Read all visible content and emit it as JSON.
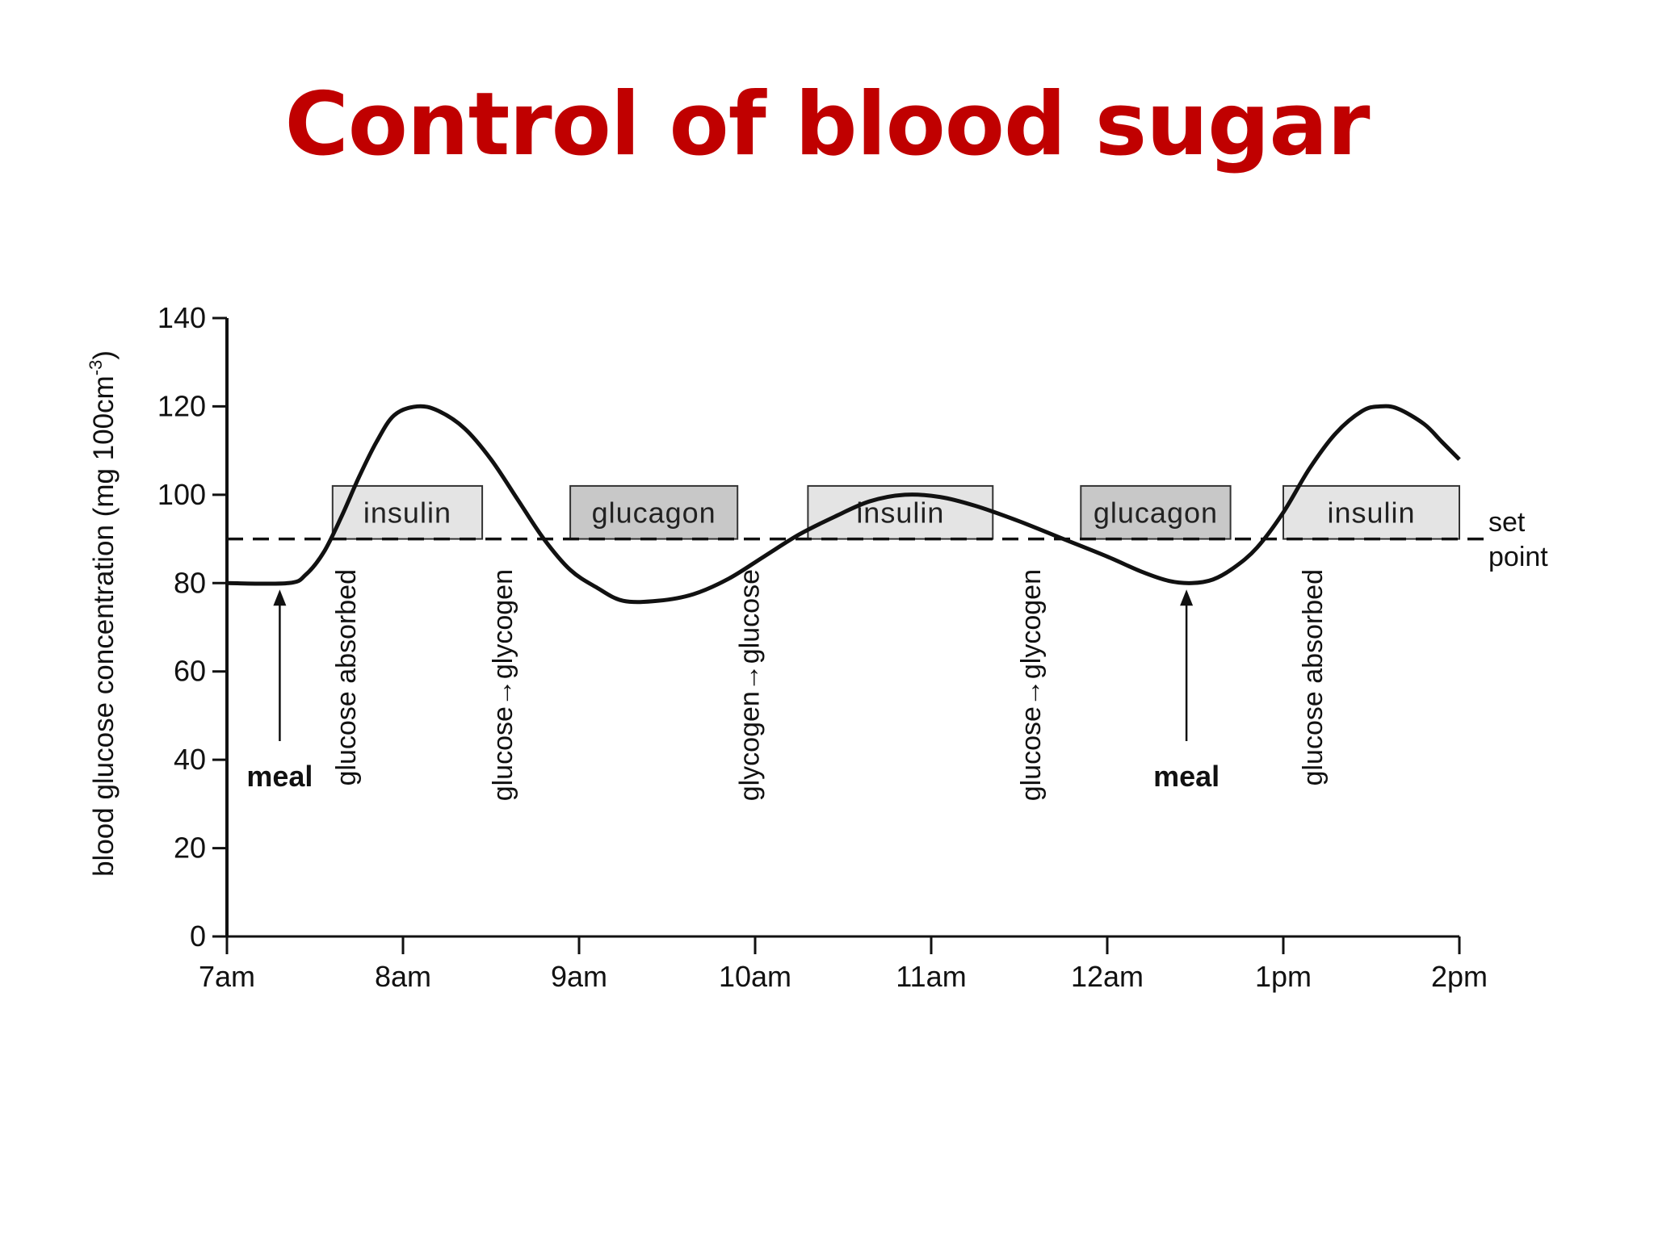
{
  "slide": {
    "title": "Control of blood sugar"
  },
  "chart_data": {
    "type": "line",
    "title": "Control of blood sugar",
    "ylabel": "blood glucose concentration (mg 100cm",
    "ylabel_superscript": "-3",
    "ylabel_close": ")",
    "ylim": [
      0,
      140
    ],
    "yticks": [
      0,
      20,
      40,
      60,
      80,
      100,
      120,
      140
    ],
    "xlim": [
      7,
      14
    ],
    "xtick_values": [
      7,
      8,
      9,
      10,
      11,
      12,
      13,
      14
    ],
    "xtick_labels": [
      "7am",
      "8am",
      "9am",
      "10am",
      "11am",
      "12am",
      "1pm",
      "2pm"
    ],
    "grid": false,
    "set_point": {
      "value": 90,
      "label_line1": "set",
      "label_line2": "point"
    },
    "series": [
      {
        "color": "#111111",
        "points": [
          [
            7.0,
            80
          ],
          [
            7.35,
            80
          ],
          [
            7.45,
            82
          ],
          [
            7.55,
            87
          ],
          [
            7.65,
            95
          ],
          [
            7.75,
            104
          ],
          [
            7.85,
            112
          ],
          [
            7.95,
            118
          ],
          [
            8.08,
            120
          ],
          [
            8.2,
            119
          ],
          [
            8.35,
            115
          ],
          [
            8.5,
            108
          ],
          [
            8.65,
            99
          ],
          [
            8.8,
            90
          ],
          [
            8.95,
            83
          ],
          [
            9.1,
            79
          ],
          [
            9.25,
            76
          ],
          [
            9.45,
            76
          ],
          [
            9.65,
            77.5
          ],
          [
            9.85,
            81
          ],
          [
            10.05,
            86
          ],
          [
            10.25,
            91
          ],
          [
            10.45,
            95
          ],
          [
            10.65,
            98.5
          ],
          [
            10.85,
            100
          ],
          [
            11.05,
            99.5
          ],
          [
            11.25,
            97.5
          ],
          [
            11.5,
            94
          ],
          [
            11.75,
            90
          ],
          [
            12.0,
            86
          ],
          [
            12.2,
            82.5
          ],
          [
            12.35,
            80.5
          ],
          [
            12.48,
            80
          ],
          [
            12.6,
            80.8
          ],
          [
            12.72,
            83.5
          ],
          [
            12.85,
            88
          ],
          [
            13.0,
            96
          ],
          [
            13.15,
            106
          ],
          [
            13.3,
            114
          ],
          [
            13.45,
            119
          ],
          [
            13.55,
            120
          ],
          [
            13.65,
            119.5
          ],
          [
            13.8,
            116
          ],
          [
            13.9,
            112
          ],
          [
            14.0,
            108
          ]
        ]
      }
    ],
    "hormone_boxes": [
      {
        "label": "insulin",
        "x_start": 7.6,
        "x_end": 8.45,
        "color": "#e4e4e4"
      },
      {
        "label": "glucagon",
        "x_start": 8.95,
        "x_end": 9.9,
        "color": "#c8c8c8"
      },
      {
        "label": "insulin",
        "x_start": 10.3,
        "x_end": 11.35,
        "color": "#e4e4e4"
      },
      {
        "label": "glucagon",
        "x_start": 11.85,
        "x_end": 12.7,
        "color": "#c8c8c8"
      },
      {
        "label": "insulin",
        "x_start": 13.0,
        "x_end": 14.0,
        "color": "#e4e4e4"
      }
    ],
    "process_labels": [
      {
        "text": "glucose absorbed",
        "x": 7.73
      },
      {
        "text": "glucose→glycogen",
        "x": 8.62
      },
      {
        "text": "glycogen→glucose",
        "x": 10.02
      },
      {
        "text": "glucose→glycogen",
        "x": 11.62
      },
      {
        "text": "glucose absorbed",
        "x": 13.22
      }
    ],
    "meal_annotations": [
      {
        "text": "meal",
        "x": 7.3,
        "y_arrow_tip": 80
      },
      {
        "text": "meal",
        "x": 12.45,
        "y_arrow_tip": 80
      }
    ]
  }
}
